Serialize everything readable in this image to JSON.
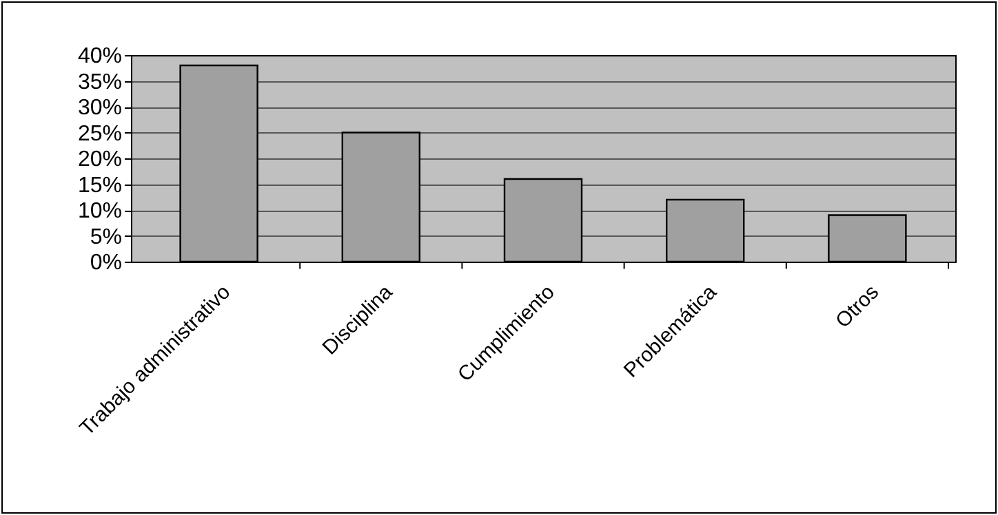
{
  "chart_data": {
    "type": "bar",
    "categories": [
      "Trabajo administrativo",
      "Disciplina",
      "Cumplimiento",
      "Problemática",
      "Otros"
    ],
    "values": [
      38,
      25,
      16,
      12,
      9
    ],
    "color": "#a0a0a0",
    "ylim": [
      0,
      40
    ],
    "yticks": [
      {
        "value": 0,
        "label": "0%"
      },
      {
        "value": 5,
        "label": "5%"
      },
      {
        "value": 10,
        "label": "10%"
      },
      {
        "value": 15,
        "label": "15%"
      },
      {
        "value": 20,
        "label": "20%"
      },
      {
        "value": 25,
        "label": "25%"
      },
      {
        "value": 30,
        "label": "30%"
      },
      {
        "value": 35,
        "label": "35%"
      },
      {
        "value": 40,
        "label": "40%"
      }
    ],
    "grid": "y"
  }
}
